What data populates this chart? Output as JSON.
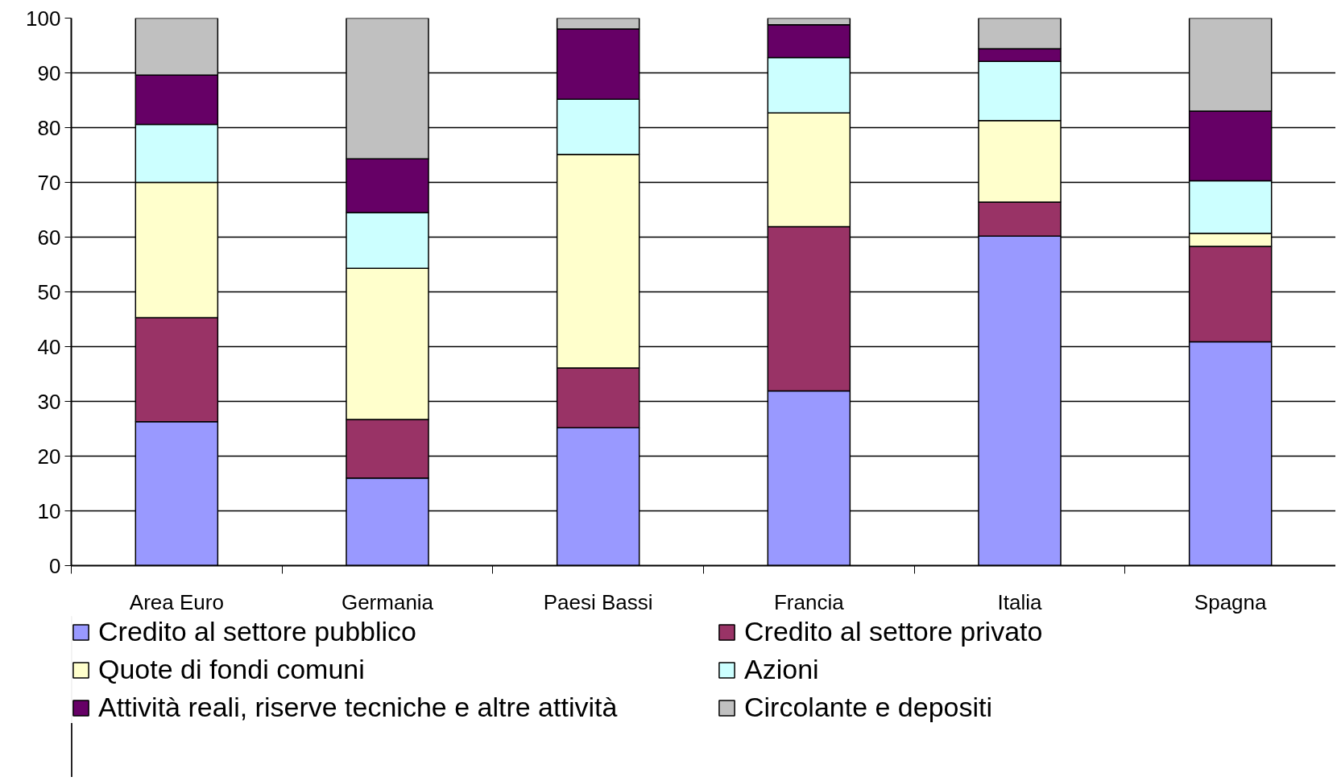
{
  "chart_data": {
    "type": "bar",
    "stacked": true,
    "categories": [
      "Area Euro",
      "Germania",
      "Paesi Bassi",
      "Francia",
      "Italia",
      "Spagna"
    ],
    "series": [
      {
        "name": "Credito al settore pubblico",
        "color": "#9999ff",
        "values": [
          26.3,
          16.0,
          25.2,
          31.9,
          60.2,
          40.9
        ]
      },
      {
        "name": "Credito al settore privato",
        "color": "#993366",
        "values": [
          19.0,
          10.7,
          10.9,
          30.0,
          6.2,
          17.4
        ]
      },
      {
        "name": "Quote di fondi comuni",
        "color": "#ffffcc",
        "values": [
          24.7,
          27.6,
          39.0,
          20.8,
          14.9,
          2.4
        ]
      },
      {
        "name": "Azioni",
        "color": "#ccffff",
        "values": [
          10.6,
          10.2,
          10.1,
          10.1,
          10.8,
          9.6
        ]
      },
      {
        "name": "Attività reali, riserve tecniche e altre attività",
        "color": "#660066",
        "values": [
          9.0,
          9.8,
          12.8,
          6.0,
          2.3,
          12.7
        ]
      },
      {
        "name": "Circolante e depositi",
        "color": "#c0c0c0",
        "values": [
          10.4,
          25.7,
          2.0,
          1.2,
          5.6,
          17.0
        ]
      }
    ],
    "ylim": [
      0,
      100
    ],
    "yticks": [
      0,
      10,
      20,
      30,
      40,
      50,
      60,
      70,
      80,
      90,
      100
    ],
    "grid": "y",
    "legend": "bottom"
  }
}
